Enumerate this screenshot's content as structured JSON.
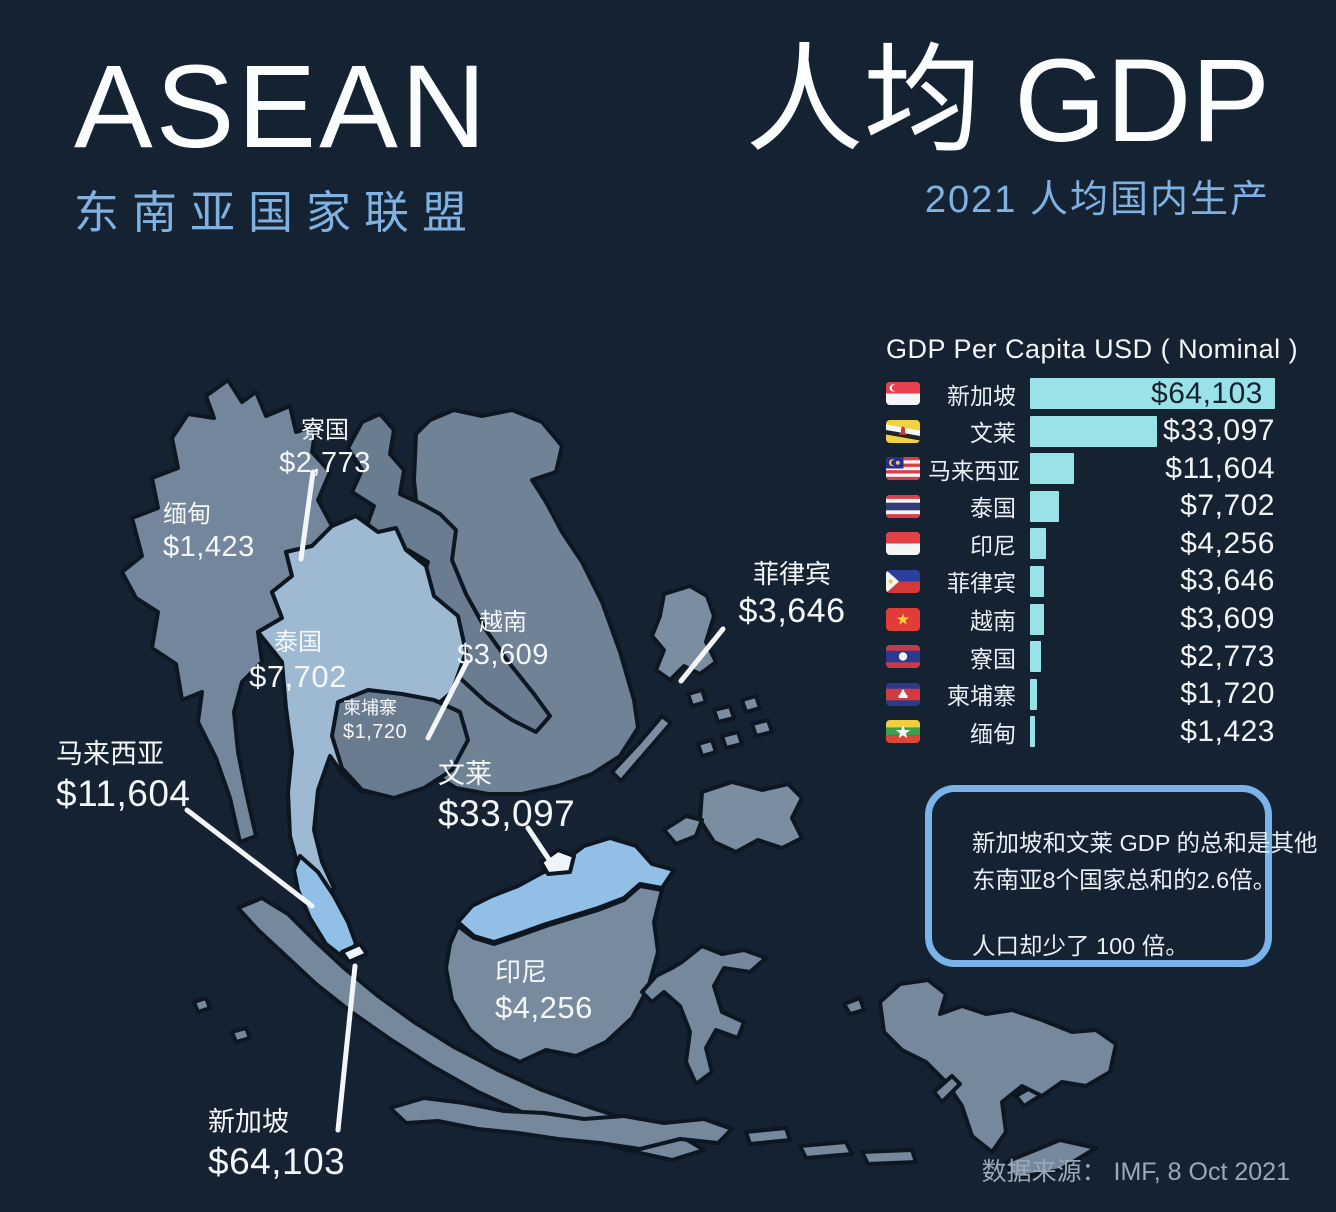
{
  "header": {
    "title_left": "ASEAN",
    "subtitle_left": "东南亚国家联盟",
    "title_right": "人均 GDP",
    "subtitle_right": "2021 人均国内生产"
  },
  "chart": {
    "title": "GDP Per Capita USD ( Nominal )",
    "rows": [
      {
        "country": "新加坡",
        "value": "$64,103",
        "flag": "singapore-flag"
      },
      {
        "country": "文莱",
        "value": "$33,097",
        "flag": "brunei-flag"
      },
      {
        "country": "马来西亚",
        "value": "$11,604",
        "flag": "malaysia-flag"
      },
      {
        "country": "泰国",
        "value": "$7,702",
        "flag": "thailand-flag"
      },
      {
        "country": "印尼",
        "value": "$4,256",
        "flag": "indonesia-flag"
      },
      {
        "country": "菲律宾",
        "value": "$3,646",
        "flag": "philippines-flag"
      },
      {
        "country": "越南",
        "value": "$3,609",
        "flag": "vietnam-flag"
      },
      {
        "country": "寮国",
        "value": "$2,773",
        "flag": "laos-flag"
      },
      {
        "country": "柬埔寨",
        "value": "$1,720",
        "flag": "cambodia-flag"
      },
      {
        "country": "缅甸",
        "value": "$1,423",
        "flag": "myanmar-flag"
      }
    ]
  },
  "chart_data": {
    "type": "bar",
    "orientation": "horizontal",
    "title": "GDP Per Capita USD ( Nominal )",
    "categories": [
      "新加坡",
      "文莱",
      "马来西亚",
      "泰国",
      "印尼",
      "菲律宾",
      "越南",
      "寮国",
      "柬埔寨",
      "缅甸"
    ],
    "values": [
      64103,
      33097,
      11604,
      7702,
      4256,
      3646,
      3609,
      2773,
      1720,
      1423
    ],
    "value_labels": [
      "$64,103",
      "$33,097",
      "$11,604",
      "$7,702",
      "$4,256",
      "$3,646",
      "$3,609",
      "$2,773",
      "$1,720",
      "$1,423"
    ],
    "xlim": [
      0,
      64103
    ],
    "grid": false,
    "bar_color": "#98e2e8"
  },
  "map_labels": {
    "laos": {
      "name": "寮国",
      "value": "$2,773"
    },
    "myanmar": {
      "name": "缅甸",
      "value": "$1,423"
    },
    "thailand": {
      "name": "泰国",
      "value": "$7,702"
    },
    "vietnam": {
      "name": "越南",
      "value": "$3,609"
    },
    "cambodia": {
      "name": "柬埔寨",
      "value": "$1,720"
    },
    "philippines": {
      "name": "菲律宾",
      "value": "$3,646"
    },
    "brunei": {
      "name": "文莱",
      "value": "$33,097"
    },
    "malaysia": {
      "name": "马来西亚",
      "value": "$11,604"
    },
    "singapore": {
      "name": "新加坡",
      "value": "$64,103"
    },
    "indonesia": {
      "name": "印尼",
      "value": "$4,256"
    }
  },
  "callout": {
    "lines": [
      "新加坡和文莱 GDP 的总和是其他",
      "东南亚8个国家总和的2.6倍。",
      "人口却少了 100 倍。"
    ]
  },
  "source": "数据来源： IMF, 8 Oct 2021",
  "colors": {
    "background": "#152231",
    "bar": "#98e2e8",
    "accent_blue": "#7fb2e3",
    "callout_border": "#79b3ea",
    "map_base": "#75889c",
    "map_thailand": "#9eb9d2",
    "map_malaysia": "#92bfe6",
    "map_white": "#eef5fa"
  }
}
